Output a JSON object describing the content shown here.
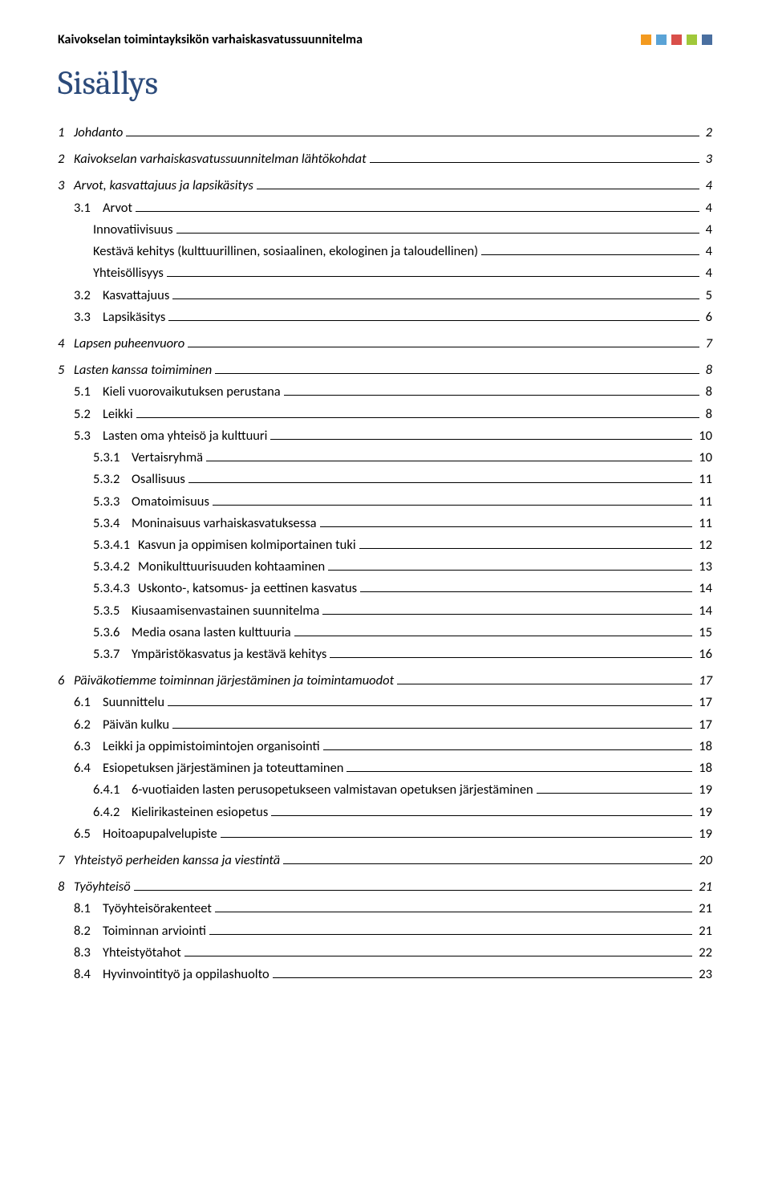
{
  "header": {
    "title": "Kaivokselan toimintayksikön varhaiskasvatussuunnitelma",
    "squares": [
      "#f39a1f",
      "#5aa3d6",
      "#d94f4a",
      "#a0c83a",
      "#4a6fa0"
    ]
  },
  "main_title": "Sisällys",
  "toc": [
    {
      "level": 0,
      "num": "1",
      "title": "Johdanto",
      "page": "2",
      "gap": false
    },
    {
      "level": 0,
      "num": "2",
      "title": "Kaivokselan varhaiskasvatussuunnitelman lähtökohdat",
      "page": "3",
      "gap": true
    },
    {
      "level": 0,
      "num": "3",
      "title": "Arvot, kasvattajuus ja lapsikäsitys",
      "page": "4",
      "gap": true
    },
    {
      "level": 2,
      "num": "3.1",
      "title": "Arvot",
      "page": "4",
      "gap": false
    },
    {
      "level": "1b",
      "num": "",
      "title": "Innovatiivisuus",
      "page": "4",
      "gap": false
    },
    {
      "level": "1b",
      "num": "",
      "title": "Kestävä kehitys (kulttuurillinen, sosiaalinen, ekologinen ja taloudellinen)",
      "page": "4",
      "gap": false
    },
    {
      "level": "1b",
      "num": "",
      "title": "Yhteisöllisyys",
      "page": "4",
      "gap": false
    },
    {
      "level": 2,
      "num": "3.2",
      "title": "Kasvattajuus",
      "page": "5",
      "gap": false
    },
    {
      "level": 2,
      "num": "3.3",
      "title": "Lapsikäsitys",
      "page": "6",
      "gap": false
    },
    {
      "level": 0,
      "num": "4",
      "title": "Lapsen puheenvuoro",
      "page": "7",
      "gap": true
    },
    {
      "level": 0,
      "num": "5",
      "title": "Lasten kanssa toimiminen",
      "page": "8",
      "gap": true
    },
    {
      "level": 2,
      "num": "5.1",
      "title": "Kieli vuorovaikutuksen perustana",
      "page": "8",
      "gap": false
    },
    {
      "level": 2,
      "num": "5.2",
      "title": "Leikki",
      "page": "8",
      "gap": false
    },
    {
      "level": 2,
      "num": "5.3",
      "title": "Lasten oma yhteisö ja kulttuuri",
      "page": "10",
      "gap": false
    },
    {
      "level": 3,
      "num": "5.3.1",
      "title": "Vertaisryhmä",
      "page": "10",
      "gap": false
    },
    {
      "level": 3,
      "num": "5.3.2",
      "title": "Osallisuus",
      "page": "11",
      "gap": false
    },
    {
      "level": 3,
      "num": "5.3.3",
      "title": "Omatoimisuus",
      "page": "11",
      "gap": false
    },
    {
      "level": 3,
      "num": "5.3.4",
      "title": "Moninaisuus varhaiskasvatuksessa",
      "page": "11",
      "gap": false
    },
    {
      "level": 3,
      "num": "5.3.4.1",
      "title": "Kasvun ja oppimisen kolmiportainen tuki",
      "page": "12",
      "gap": false
    },
    {
      "level": 3,
      "num": "5.3.4.2",
      "title": "Monikulttuurisuuden kohtaaminen",
      "page": "13",
      "gap": false
    },
    {
      "level": 3,
      "num": "5.3.4.3",
      "title": "Uskonto-, katsomus- ja eettinen kasvatus",
      "page": "14",
      "gap": false
    },
    {
      "level": 3,
      "num": "5.3.5",
      "title": "Kiusaamisenvastainen suunnitelma",
      "page": "14",
      "gap": false
    },
    {
      "level": 3,
      "num": "5.3.6",
      "title": "Media osana lasten kulttuuria",
      "page": "15",
      "gap": false
    },
    {
      "level": 3,
      "num": "5.3.7",
      "title": "Ympäristökasvatus ja kestävä kehitys",
      "page": "16",
      "gap": false
    },
    {
      "level": 0,
      "num": "6",
      "title": "Päiväkotiemme toiminnan järjestäminen ja toimintamuodot",
      "page": "17",
      "gap": true
    },
    {
      "level": 2,
      "num": "6.1",
      "title": "Suunnittelu",
      "page": "17",
      "gap": false
    },
    {
      "level": 2,
      "num": "6.2",
      "title": "Päivän kulku",
      "page": "17",
      "gap": false
    },
    {
      "level": 2,
      "num": "6.3",
      "title": "Leikki ja oppimistoimintojen organisointi",
      "page": "18",
      "gap": false
    },
    {
      "level": 2,
      "num": "6.4",
      "title": "Esiopetuksen järjestäminen ja toteuttaminen",
      "page": "18",
      "gap": false
    },
    {
      "level": 3,
      "num": "6.4.1",
      "title": "6-vuotiaiden lasten perusopetukseen valmistavan opetuksen järjestäminen",
      "page": "19",
      "gap": false
    },
    {
      "level": 3,
      "num": "6.4.2",
      "title": "Kielirikasteinen esiopetus",
      "page": "19",
      "gap": false
    },
    {
      "level": 2,
      "num": "6.5",
      "title": "Hoitoapupalvelupiste",
      "page": "19",
      "gap": false
    },
    {
      "level": 0,
      "num": "7",
      "title": "Yhteistyö perheiden kanssa ja viestintä",
      "page": "20",
      "gap": true
    },
    {
      "level": 0,
      "num": "8",
      "title": "Työyhteisö",
      "page": "21",
      "gap": true
    },
    {
      "level": 2,
      "num": "8.1",
      "title": "Työyhteisörakenteet",
      "page": "21",
      "gap": false
    },
    {
      "level": 2,
      "num": "8.2",
      "title": "Toiminnan arviointi",
      "page": "21",
      "gap": false
    },
    {
      "level": 2,
      "num": "8.3",
      "title": "Yhteistyötahot",
      "page": "22",
      "gap": false
    },
    {
      "level": 2,
      "num": "8.4",
      "title": "Hyvinvointityö ja oppilashuolto",
      "page": "23",
      "gap": false
    }
  ],
  "colors": {
    "heading": "#2b4a7a",
    "text": "#000000",
    "background": "#ffffff"
  },
  "typography": {
    "body_font": "Calibri",
    "body_size_pt": 12,
    "heading_font": "Cambria",
    "heading_size_pt": 32
  }
}
